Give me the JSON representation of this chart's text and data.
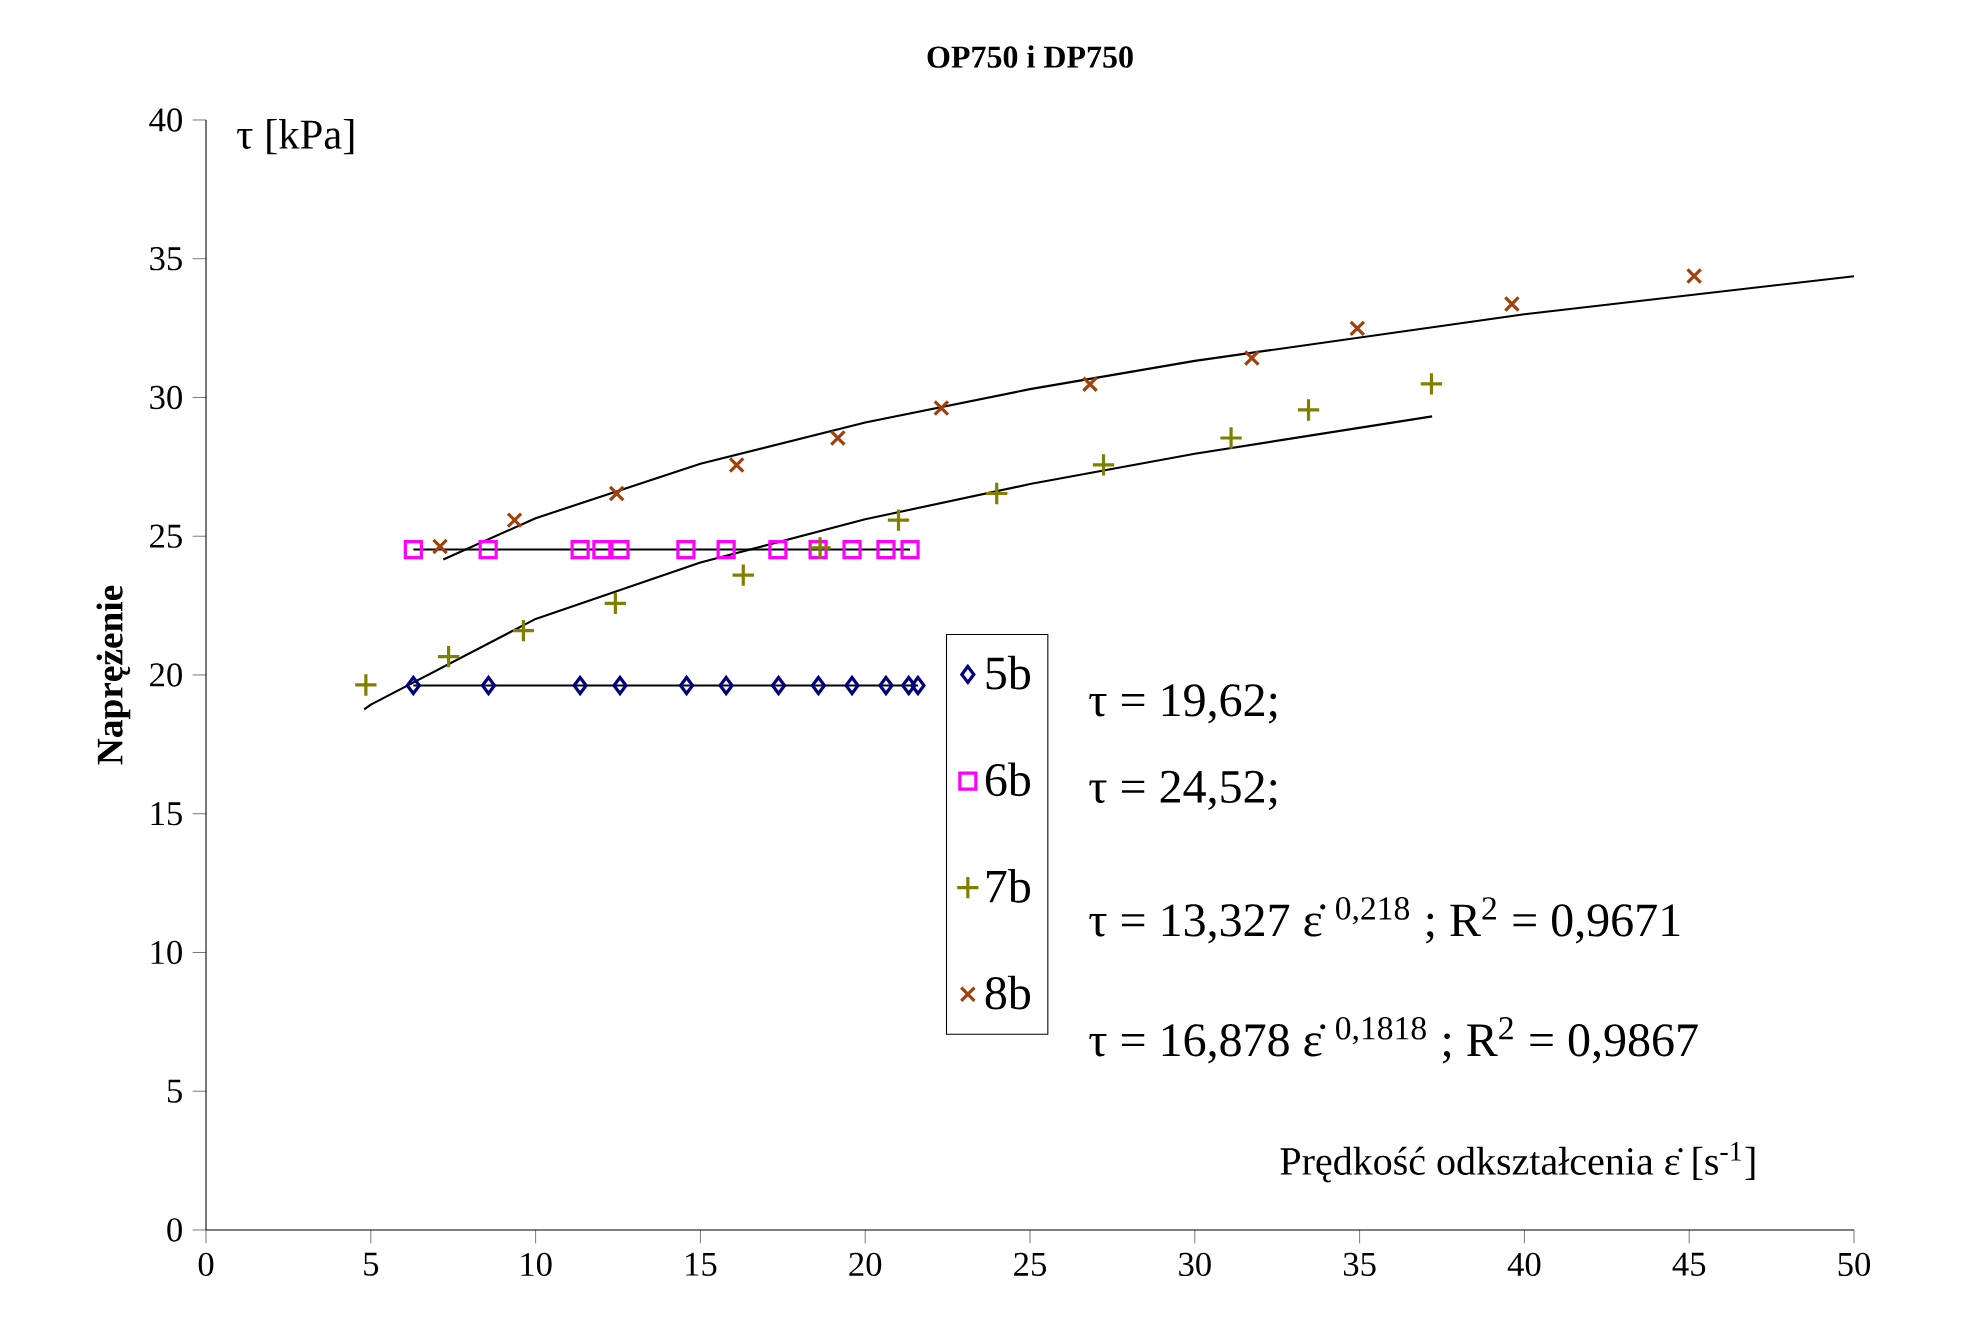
{
  "chart_data": {
    "type": "scatter",
    "title": "OP750 i DP750",
    "xlabel": "Prędkość odkształcenia  ε̇  [s$^{-1}$]",
    "ylabel": "Naprężenie",
    "xlim": [
      0,
      50
    ],
    "ylim": [
      0,
      40
    ],
    "xticks": [
      0,
      5,
      10,
      15,
      20,
      25,
      30,
      35,
      40,
      45,
      50
    ],
    "yticks": [
      0,
      5,
      10,
      15,
      20,
      25,
      30,
      35,
      40
    ],
    "grid": false,
    "legend": "bottom",
    "annotations": [
      "τ = 19,62;",
      "τ = 24,52;",
      "τ = 13,327    ε̇ $^{0,218}$ ;    R$^{2}$ = 0,9671",
      "τ = 16,878    ε̇ $^{0,1818}$ ;   R$^{2}$ = 0,9867",
      "τ [kPa]"
    ],
    "series": [
      {
        "name": "5b",
        "marker": "diamond",
        "color": "#000080",
        "x": [
          6.29,
          8.57,
          11.35,
          12.56,
          14.58,
          15.78,
          17.37,
          18.58,
          19.6,
          20.63,
          21.32,
          21.6
        ],
        "values": [
          19.62,
          19.62,
          19.62,
          19.62,
          19.62,
          19.62,
          19.62,
          19.62,
          19.62,
          19.62,
          19.62,
          19.62
        ]
      },
      {
        "name": "6b",
        "marker": "square",
        "color": "#ff00ff",
        "x": [
          6.29,
          8.56,
          11.35,
          12.01,
          12.56,
          14.56,
          15.78,
          17.35,
          18.57,
          19.6,
          20.63,
          21.36
        ],
        "values": [
          24.52,
          24.52,
          24.52,
          24.52,
          24.52,
          24.52,
          24.52,
          24.52,
          24.52,
          24.52,
          24.52,
          24.52
        ]
      },
      {
        "name": "7b",
        "marker": "plus",
        "color": "#808000",
        "x": [
          4.85,
          7.36,
          9.63,
          12.42,
          16.3,
          18.63,
          21.01,
          23.99,
          27.23,
          31.1,
          33.45,
          37.18
        ],
        "values": [
          19.64,
          20.66,
          21.6,
          22.58,
          23.6,
          24.58,
          25.58,
          26.54,
          27.57,
          28.54,
          29.55,
          30.49
        ]
      },
      {
        "name": "8b",
        "marker": "cross",
        "color": "#a0400a",
        "x": [
          7.1,
          9.36,
          12.46,
          16.1,
          19.17,
          22.31,
          26.82,
          31.73,
          34.93,
          39.62,
          45.15
        ],
        "values": [
          24.63,
          25.58,
          26.54,
          27.57,
          28.54,
          29.62,
          30.48,
          31.42,
          32.49,
          33.37,
          34.38
        ]
      },
      {
        "type": "line",
        "color": "#000000",
        "x": [
          6.29,
          21.6
        ],
        "values": [
          19.62,
          19.62
        ]
      },
      {
        "type": "line",
        "color": "#000000",
        "x": [
          6.29,
          21.36
        ],
        "values": [
          24.52,
          24.52
        ]
      },
      {
        "type": "line",
        "color": "#000000",
        "x": [
          4.8,
          5,
          10,
          15,
          20,
          25,
          30,
          37.2
        ],
        "values": [
          18.76,
          18.93,
          22.02,
          24.05,
          25.61,
          26.88,
          27.97,
          29.32
        ]
      },
      {
        "type": "line",
        "color": "#000000",
        "x": [
          7.2,
          10,
          15,
          20,
          25,
          30,
          40,
          50
        ],
        "values": [
          24.16,
          25.65,
          27.61,
          29.1,
          30.3,
          31.32,
          33.0,
          34.37
        ]
      }
    ]
  }
}
